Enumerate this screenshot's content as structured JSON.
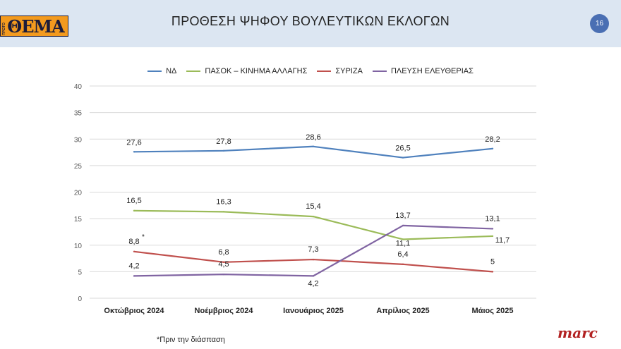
{
  "header": {
    "logo_text": "ΘΕΜΑ",
    "logo_small": "ΠΡΩΤΟ",
    "title": "ΠΡΟΘΕΣΗ ΨΗΦΟΥ ΒΟΥΛΕΥΤΙΚΩΝ ΕΚΛΟΓΩΝ",
    "page_number": "16"
  },
  "colors": {
    "nd": "#4f81bd",
    "pasok": "#9bbb59",
    "syriza": "#c0504d",
    "plefsi": "#8064a2",
    "grid": "#d9d9d9",
    "axis_text": "#595959"
  },
  "chart_data": {
    "type": "line",
    "title": "ΠΡΟΘΕΣΗ ΨΗΦΟΥ ΒΟΥΛΕΥΤΙΚΩΝ ΕΚΛΟΓΩΝ",
    "categories": [
      "Οκτώβριος 2024",
      "Νοέμβριος 2024",
      "Ιανουάριος 2025",
      "Απρίλιος 2025",
      "Μάιος 2025"
    ],
    "ylim": [
      0,
      40
    ],
    "yticks": [
      0,
      5,
      10,
      15,
      20,
      25,
      30,
      35,
      40
    ],
    "grid": true,
    "legend_position": "top",
    "series": [
      {
        "key": "nd",
        "name": "ΝΔ",
        "values": [
          27.6,
          27.8,
          28.6,
          26.5,
          28.2
        ],
        "labels": [
          "27,6",
          "27,8",
          "28,6",
          "26,5",
          "28,2"
        ]
      },
      {
        "key": "pasok",
        "name": "ΠΑΣΟΚ – ΚΙΝΗΜΑ ΑΛΛΑΓΗΣ",
        "values": [
          16.5,
          16.3,
          15.4,
          11.1,
          11.7
        ],
        "labels": [
          "16,5",
          "16,3",
          "15,4",
          "11,1",
          "11,7"
        ]
      },
      {
        "key": "syriza",
        "name": "ΣΥΡΙΖΑ",
        "values": [
          8.8,
          6.8,
          7.3,
          6.4,
          5
        ],
        "labels": [
          "8,8",
          "6,8",
          "7,3",
          "6,4",
          "5"
        ]
      },
      {
        "key": "plefsi",
        "name": "ΠΛΕΥΣΗ ΕΛΕΥΘΕΡΙΑΣ",
        "values": [
          4.2,
          4.5,
          4.2,
          13.7,
          13.1
        ],
        "labels": [
          "4,2",
          "4,5",
          "4,2",
          "13,7",
          "13,1"
        ]
      }
    ],
    "annotation_mark": "*",
    "footnote": "*Πριν την διάσπαση"
  },
  "brand": "marc"
}
